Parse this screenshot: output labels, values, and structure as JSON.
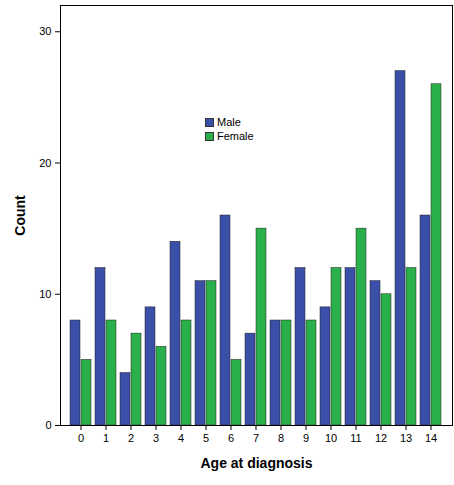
{
  "chart_data": {
    "type": "bar",
    "x_label": "Age at diagnosis",
    "y_label": "Count",
    "categories": [
      0,
      1,
      2,
      3,
      4,
      5,
      6,
      7,
      8,
      9,
      10,
      11,
      12,
      13,
      14
    ],
    "series": [
      {
        "name": "Male",
        "color": "#3a4fa8",
        "values": [
          8,
          12,
          4,
          9,
          14,
          11,
          16,
          7,
          8,
          12,
          9,
          12,
          11,
          27,
          16
        ]
      },
      {
        "name": "Female",
        "color": "#2ab04a",
        "values": [
          5,
          8,
          7,
          6,
          8,
          11,
          5,
          15,
          8,
          8,
          12,
          15,
          10,
          12,
          26
        ]
      }
    ],
    "ylim": [
      0,
      32
    ],
    "yticks": [
      0,
      10,
      20,
      30
    ],
    "grid": false,
    "legend": "top"
  }
}
